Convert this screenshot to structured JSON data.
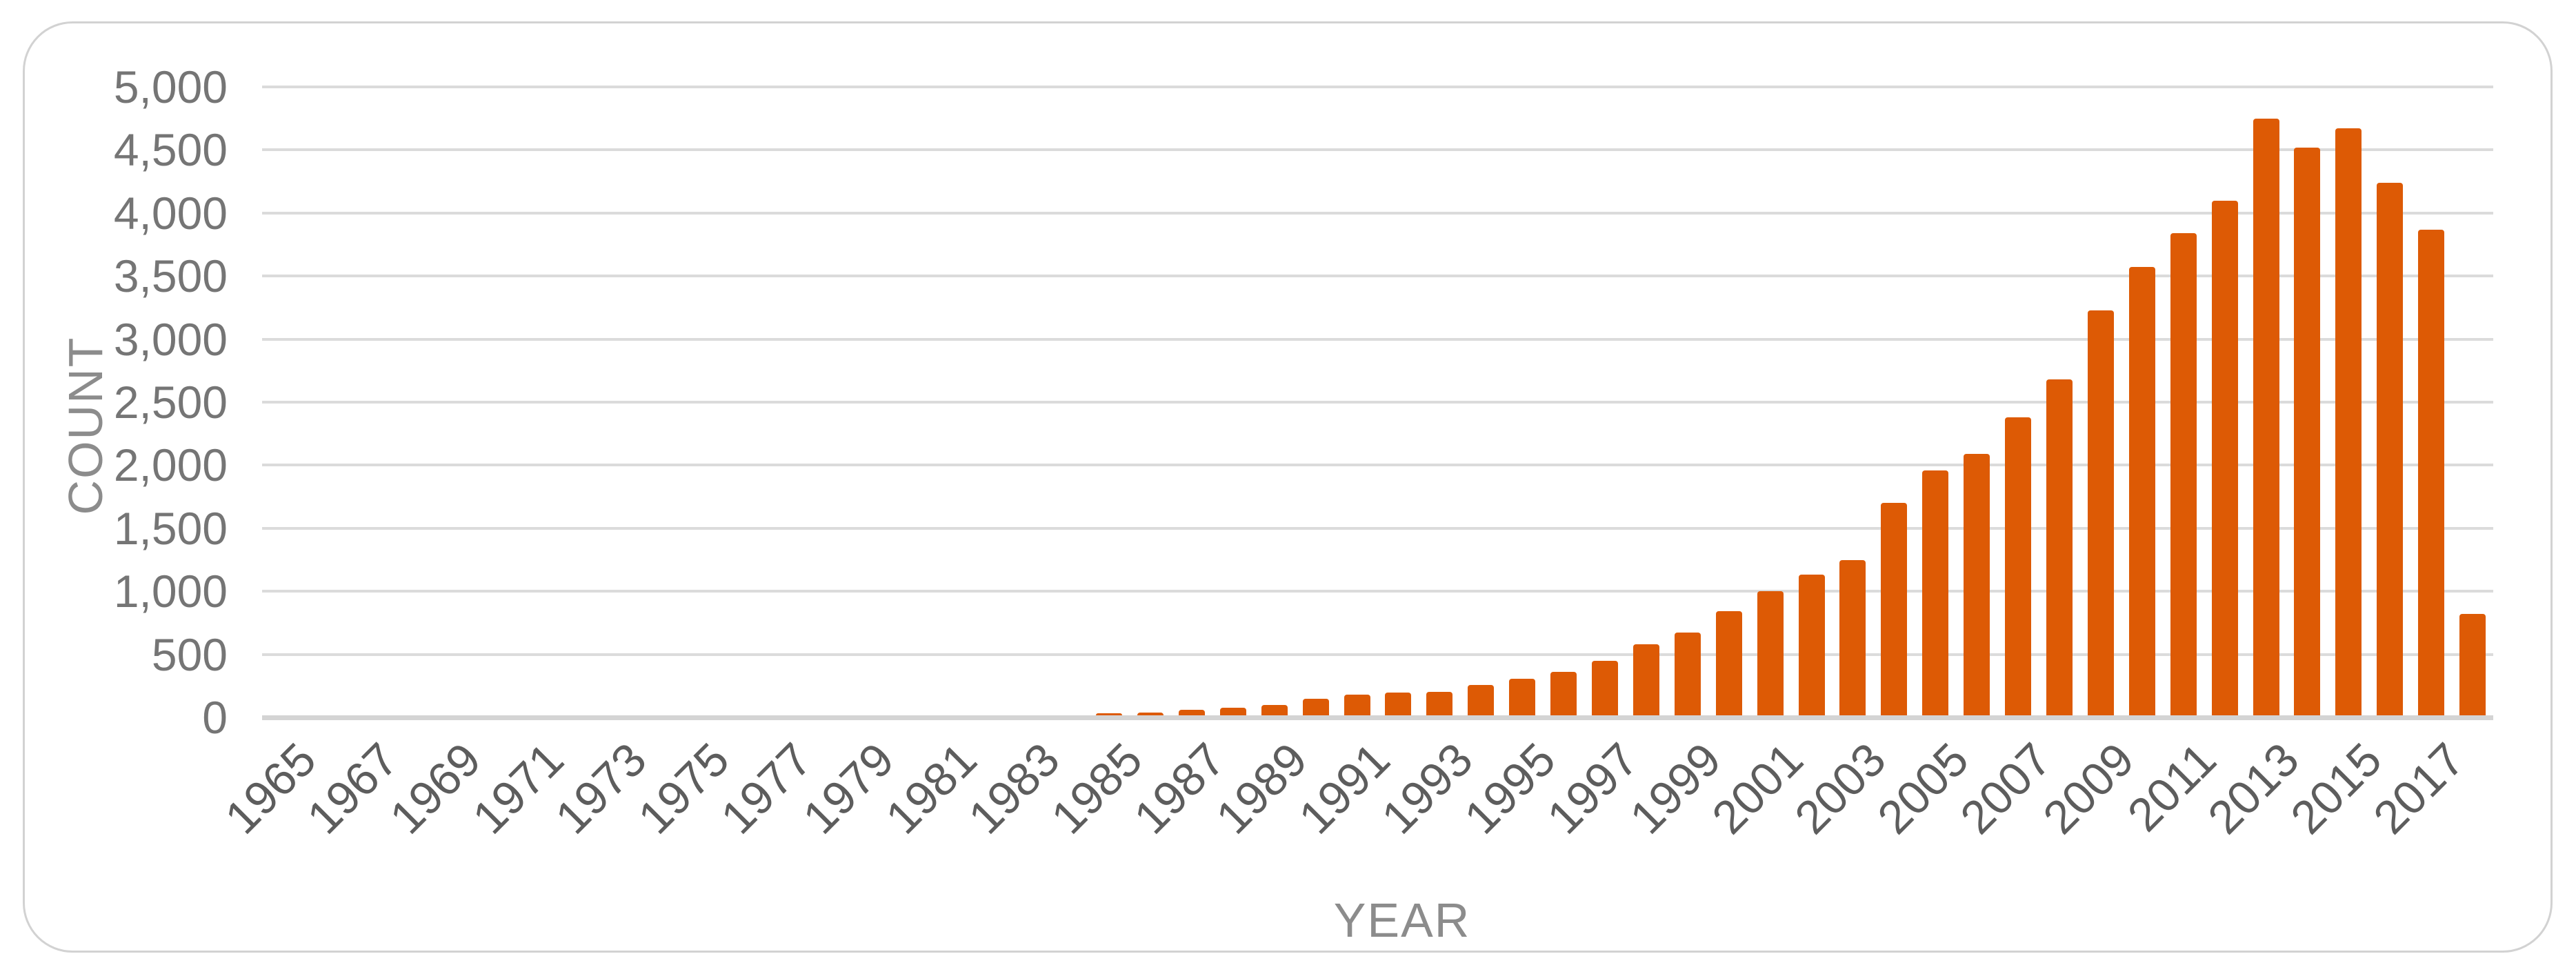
{
  "chart_data": {
    "type": "bar",
    "title": "",
    "xlabel": "YEAR",
    "ylabel": "COUNT",
    "x": [
      1965,
      1966,
      1967,
      1968,
      1969,
      1970,
      1971,
      1972,
      1973,
      1974,
      1975,
      1976,
      1977,
      1978,
      1979,
      1980,
      1981,
      1982,
      1983,
      1984,
      1985,
      1986,
      1987,
      1988,
      1989,
      1990,
      1991,
      1992,
      1993,
      1994,
      1995,
      1996,
      1997,
      1998,
      1999,
      2000,
      2001,
      2002,
      2003,
      2004,
      2005,
      2006,
      2007,
      2008,
      2009,
      2010,
      2011,
      2012,
      2013,
      2014,
      2015,
      2016,
      2017,
      2018
    ],
    "values": [
      0,
      0,
      0,
      0,
      0,
      0,
      0,
      0,
      0,
      0,
      0,
      0,
      0,
      0,
      0,
      0,
      0,
      0,
      10,
      0,
      35,
      40,
      60,
      75,
      100,
      145,
      180,
      195,
      205,
      255,
      305,
      360,
      450,
      580,
      675,
      845,
      1000,
      1130,
      1250,
      1700,
      1960,
      2090,
      2380,
      2680,
      3230,
      3570,
      3840,
      4100,
      4750,
      4520,
      4670,
      4240,
      3870,
      820
    ],
    "ylim": [
      0,
      5000
    ],
    "ytick_step": 500,
    "y_tick_labels": [
      "0",
      "500",
      "1,000",
      "1,500",
      "2,000",
      "2,500",
      "3,000",
      "3,500",
      "4,000",
      "4,500",
      "5,000"
    ],
    "x_tick_labels": [
      "1965",
      "1967",
      "1969",
      "1971",
      "1973",
      "1975",
      "1977",
      "1979",
      "1981",
      "1983",
      "1985",
      "1987",
      "1989",
      "1991",
      "1993",
      "1995",
      "1997",
      "1999",
      "2001",
      "2003",
      "2005",
      "2007",
      "2009",
      "2011",
      "2013",
      "2015",
      "2017"
    ],
    "grid": true,
    "legend": false,
    "bar_color": "#dd5a05",
    "gridline_color": "#dbdbdb",
    "axis_line_color": "#d4d4d4",
    "tick_label_color": "#5d5d5d",
    "axis_title_color": "#8c8c8c",
    "background_color": "#ffffff"
  }
}
